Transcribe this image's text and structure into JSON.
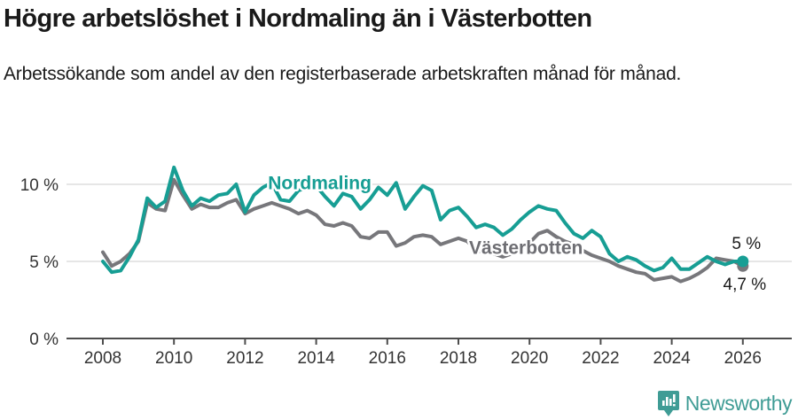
{
  "header": {
    "title": "Högre arbetslöshet i Nordmaling än i Västerbotten",
    "subtitle": "Arbetssökande som andel av den registerbaserade arbetskraften månad för månad."
  },
  "chart_data": {
    "type": "line",
    "title": "Högre arbetslöshet i Nordmaling än i Västerbotten",
    "xlabel": "",
    "ylabel": "Arbetssökande som andel av den registerbaserade arbetskraften",
    "unit": "%",
    "xlim": [
      2007,
      2027.4
    ],
    "ylim": [
      0,
      12.5
    ],
    "grid": "horizontal",
    "legend_position": "inline-labels",
    "x": [
      2008.0,
      2008.25,
      2008.5,
      2008.75,
      2009.0,
      2009.25,
      2009.5,
      2009.75,
      2010.0,
      2010.25,
      2010.5,
      2010.75,
      2011.0,
      2011.25,
      2011.5,
      2011.75,
      2012.0,
      2012.25,
      2012.5,
      2012.75,
      2013.0,
      2013.25,
      2013.5,
      2013.75,
      2014.0,
      2014.25,
      2014.5,
      2014.75,
      2015.0,
      2015.25,
      2015.5,
      2015.75,
      2016.0,
      2016.25,
      2016.5,
      2016.75,
      2017.0,
      2017.25,
      2017.5,
      2017.75,
      2018.0,
      2018.25,
      2018.5,
      2018.75,
      2019.0,
      2019.25,
      2019.5,
      2019.75,
      2020.0,
      2020.25,
      2020.5,
      2020.75,
      2021.0,
      2021.25,
      2021.5,
      2021.75,
      2022.0,
      2022.25,
      2022.5,
      2022.75,
      2023.0,
      2023.25,
      2023.5,
      2023.75,
      2024.0,
      2024.25,
      2024.5,
      2024.75,
      2025.0,
      2025.25,
      2025.5,
      2025.75,
      2026.0
    ],
    "series": [
      {
        "name": "Nordmaling",
        "color": "#179e94",
        "values": [
          5.0,
          4.3,
          4.4,
          5.3,
          6.4,
          9.1,
          8.5,
          8.9,
          11.1,
          9.6,
          8.6,
          9.1,
          8.9,
          9.3,
          9.4,
          10.0,
          8.2,
          9.3,
          9.8,
          10.1,
          9.0,
          8.9,
          9.6,
          9.8,
          9.9,
          9.2,
          8.6,
          9.4,
          9.2,
          8.4,
          9.0,
          9.8,
          9.3,
          10.1,
          8.4,
          9.2,
          9.9,
          9.6,
          7.7,
          8.3,
          8.5,
          7.9,
          7.2,
          7.4,
          7.2,
          6.7,
          7.1,
          7.7,
          8.2,
          8.6,
          8.4,
          8.3,
          7.5,
          6.8,
          6.5,
          7.0,
          6.6,
          5.5,
          5.0,
          5.3,
          5.1,
          4.7,
          4.4,
          4.6,
          5.2,
          4.5,
          4.5,
          4.9,
          5.3,
          5.0,
          4.8,
          5.0,
          5.0
        ]
      },
      {
        "name": "Västerbotten",
        "color": "#77777b",
        "values": [
          5.6,
          4.7,
          5.0,
          5.5,
          6.3,
          8.8,
          8.4,
          8.3,
          10.3,
          9.3,
          8.4,
          8.7,
          8.5,
          8.5,
          8.8,
          9.0,
          8.1,
          8.4,
          8.6,
          8.8,
          8.6,
          8.4,
          8.1,
          8.3,
          8.0,
          7.4,
          7.3,
          7.5,
          7.3,
          6.6,
          6.5,
          6.9,
          6.9,
          6.0,
          6.2,
          6.6,
          6.7,
          6.6,
          6.1,
          6.3,
          6.5,
          6.3,
          5.7,
          5.6,
          5.5,
          5.3,
          5.5,
          5.8,
          6.2,
          6.8,
          7.0,
          6.6,
          6.3,
          6.1,
          5.7,
          5.4,
          5.2,
          5.0,
          4.7,
          4.5,
          4.3,
          4.2,
          3.8,
          3.9,
          4.0,
          3.7,
          3.9,
          4.2,
          4.6,
          5.2,
          5.1,
          5.0,
          4.7
        ]
      }
    ],
    "xticks": [
      2008,
      2010,
      2012,
      2014,
      2016,
      2018,
      2020,
      2022,
      2024,
      2026
    ],
    "yticks": [
      {
        "value": 0,
        "label": "0 %"
      },
      {
        "value": 5,
        "label": "5 %"
      },
      {
        "value": 10,
        "label": "10 %"
      }
    ],
    "series_labels": [
      {
        "text": "Nordmaling",
        "x": 2014.1,
        "y": 10.1,
        "color": "#179e94"
      },
      {
        "text": "Västerbotten",
        "x": 2019.9,
        "y": 5.9,
        "color": "#6e6e73"
      }
    ],
    "end_labels": [
      {
        "text": "5 %",
        "x": 2026.1,
        "y": 6.2
      },
      {
        "text": "4,7 %",
        "x": 2026.05,
        "y": 3.55
      }
    ]
  },
  "footer": {
    "brand": "Newsworthy",
    "logo_icon": "bar-chart-speech-bubble",
    "brand_color": "#3f9c95"
  }
}
